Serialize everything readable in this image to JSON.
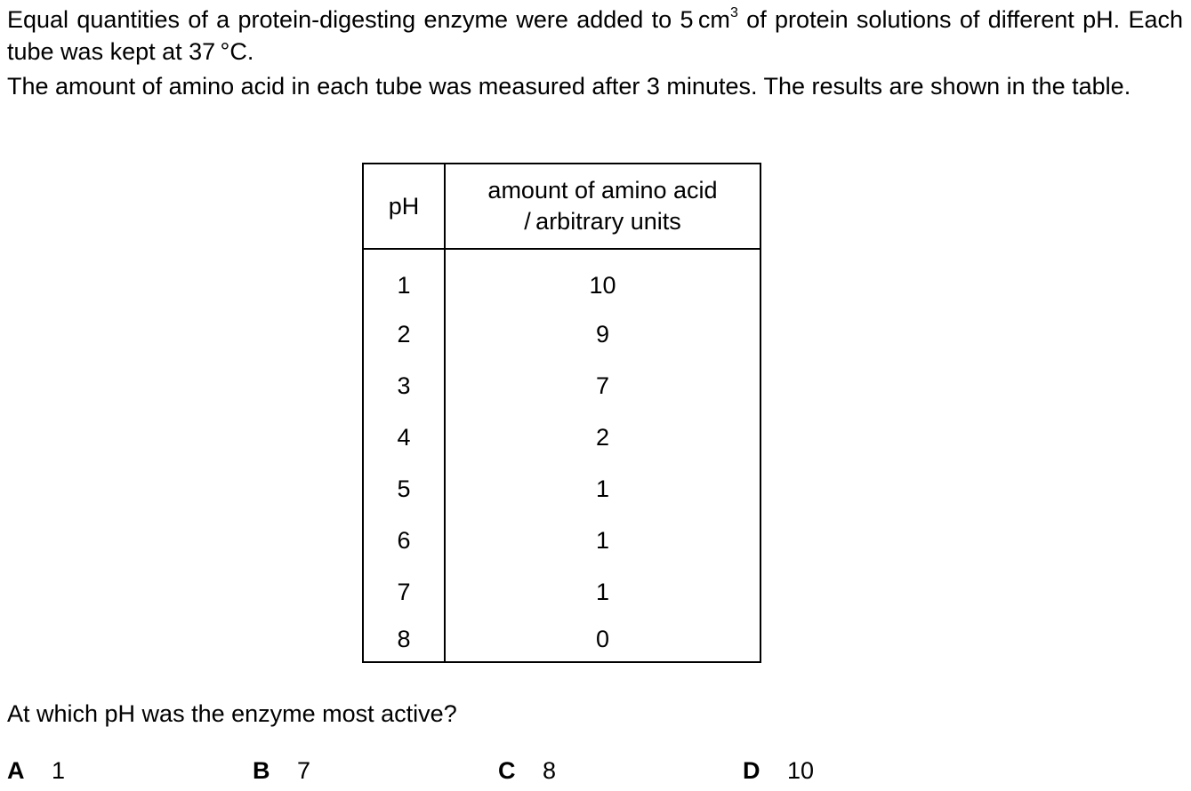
{
  "intro": {
    "line1_before_sup": "Equal quantities of a protein-digesting enzyme were added to 5 cm",
    "line1_sup": "3",
    "line1_after_sup": " of protein solutions of different pH. Each tube was kept at 37 °C.",
    "line2": "The amount of amino acid in each tube was measured after 3 minutes. The results are shown in the table."
  },
  "table": {
    "header_ph": "pH",
    "header_amount_line1": "amount of amino acid",
    "header_amount_line2": "/ arbitrary units",
    "rows": [
      {
        "ph": "1",
        "amount": "10"
      },
      {
        "ph": "2",
        "amount": "9"
      },
      {
        "ph": "3",
        "amount": "7"
      },
      {
        "ph": "4",
        "amount": "2"
      },
      {
        "ph": "5",
        "amount": "1"
      },
      {
        "ph": "6",
        "amount": "1"
      },
      {
        "ph": "7",
        "amount": "1"
      },
      {
        "ph": "8",
        "amount": "0"
      }
    ]
  },
  "question": "At which pH was the enzyme most active?",
  "options": [
    {
      "letter": "A",
      "value": "1"
    },
    {
      "letter": "B",
      "value": "7"
    },
    {
      "letter": "C",
      "value": "8"
    },
    {
      "letter": "D",
      "value": "10"
    }
  ]
}
